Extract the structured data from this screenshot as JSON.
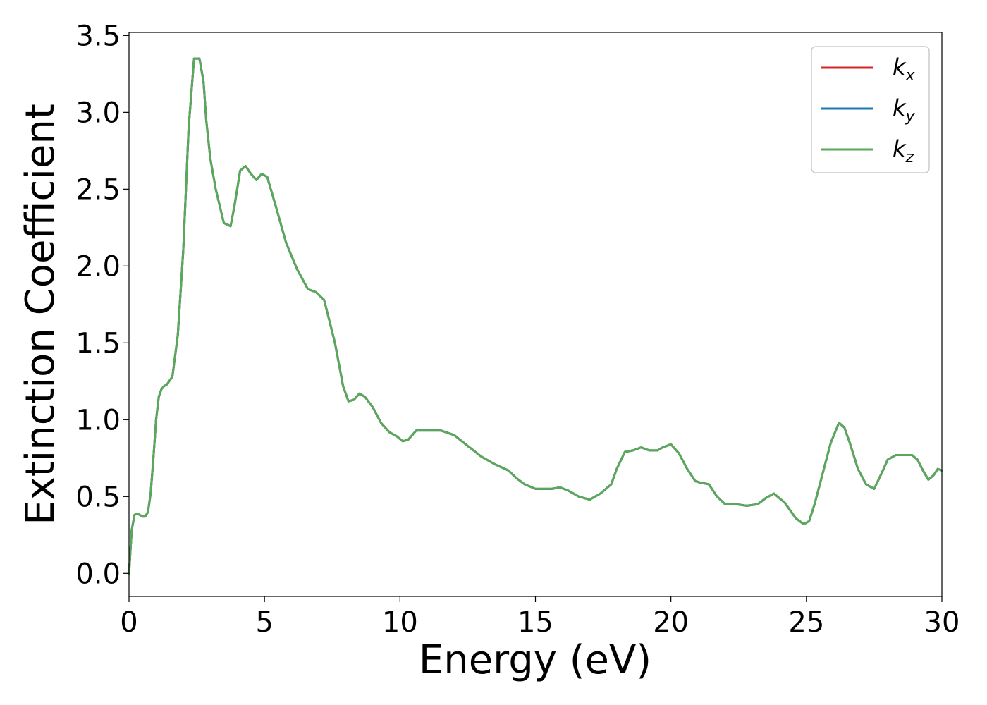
{
  "chart_data": {
    "type": "line",
    "title": "",
    "xlabel": "Energy (eV)",
    "ylabel": "Extinction Coefficient",
    "xlim": [
      0,
      30
    ],
    "ylim": [
      -0.15,
      3.52
    ],
    "xticks": [
      0,
      5,
      10,
      15,
      20,
      25,
      30
    ],
    "yticks": [
      0.0,
      0.5,
      1.0,
      1.5,
      2.0,
      2.5,
      3.0,
      3.5
    ],
    "xtick_labels": [
      "0",
      "5",
      "10",
      "15",
      "20",
      "25",
      "30"
    ],
    "ytick_labels": [
      "0.0",
      "0.5",
      "1.0",
      "1.5",
      "2.0",
      "2.5",
      "3.0",
      "3.5"
    ],
    "grid": false,
    "legend_position": "top-right",
    "x": [
      0,
      0.1,
      0.2,
      0.3,
      0.4,
      0.5,
      0.6,
      0.7,
      0.8,
      0.9,
      1.0,
      1.1,
      1.2,
      1.3,
      1.4,
      1.6,
      1.8,
      2.0,
      2.2,
      2.4,
      2.6,
      2.75,
      2.85,
      3.0,
      3.2,
      3.5,
      3.75,
      3.9,
      4.1,
      4.3,
      4.5,
      4.7,
      4.9,
      5.1,
      5.4,
      5.8,
      6.2,
      6.6,
      6.9,
      7.2,
      7.6,
      7.9,
      8.1,
      8.3,
      8.5,
      8.7,
      9.0,
      9.3,
      9.6,
      9.9,
      10.1,
      10.3,
      10.6,
      11.0,
      11.5,
      12.0,
      12.5,
      13.0,
      13.5,
      14.0,
      14.3,
      14.6,
      15.0,
      15.3,
      15.6,
      15.9,
      16.2,
      16.6,
      17.0,
      17.4,
      17.8,
      18.0,
      18.3,
      18.6,
      18.9,
      19.2,
      19.5,
      19.7,
      20.0,
      20.3,
      20.6,
      20.9,
      21.1,
      21.4,
      21.7,
      22.0,
      22.4,
      22.8,
      23.2,
      23.5,
      23.8,
      24.2,
      24.6,
      24.9,
      25.1,
      25.3,
      25.6,
      25.9,
      26.2,
      26.4,
      26.6,
      26.9,
      27.2,
      27.5,
      27.8,
      28.0,
      28.3,
      28.6,
      28.9,
      29.1,
      29.3,
      29.5,
      29.7,
      29.85,
      30.0
    ],
    "series": [
      {
        "name": "kx",
        "color": "#d62728",
        "values": [
          0.0,
          0.28,
          0.38,
          0.39,
          0.38,
          0.37,
          0.37,
          0.4,
          0.52,
          0.75,
          1.0,
          1.15,
          1.2,
          1.22,
          1.23,
          1.28,
          1.55,
          2.1,
          2.9,
          3.35,
          3.35,
          3.2,
          2.95,
          2.7,
          2.5,
          2.28,
          2.26,
          2.4,
          2.62,
          2.65,
          2.6,
          2.56,
          2.6,
          2.58,
          2.4,
          2.15,
          1.98,
          1.85,
          1.83,
          1.78,
          1.5,
          1.22,
          1.12,
          1.13,
          1.17,
          1.15,
          1.08,
          0.98,
          0.92,
          0.89,
          0.86,
          0.87,
          0.93,
          0.93,
          0.93,
          0.9,
          0.83,
          0.76,
          0.71,
          0.67,
          0.62,
          0.58,
          0.55,
          0.55,
          0.55,
          0.56,
          0.54,
          0.5,
          0.48,
          0.52,
          0.58,
          0.68,
          0.79,
          0.8,
          0.82,
          0.8,
          0.8,
          0.82,
          0.84,
          0.78,
          0.68,
          0.6,
          0.59,
          0.58,
          0.5,
          0.45,
          0.45,
          0.44,
          0.45,
          0.49,
          0.52,
          0.46,
          0.36,
          0.32,
          0.34,
          0.45,
          0.65,
          0.85,
          0.98,
          0.95,
          0.85,
          0.68,
          0.58,
          0.55,
          0.66,
          0.74,
          0.77,
          0.77,
          0.77,
          0.74,
          0.67,
          0.61,
          0.64,
          0.68,
          0.67
        ]
      },
      {
        "name": "ky",
        "color": "#1f77b4",
        "values": [
          0.0,
          0.28,
          0.38,
          0.39,
          0.38,
          0.37,
          0.37,
          0.4,
          0.52,
          0.75,
          1.0,
          1.15,
          1.2,
          1.22,
          1.23,
          1.28,
          1.55,
          2.1,
          2.9,
          3.35,
          3.35,
          3.2,
          2.95,
          2.7,
          2.5,
          2.28,
          2.26,
          2.4,
          2.62,
          2.65,
          2.6,
          2.56,
          2.6,
          2.58,
          2.4,
          2.15,
          1.98,
          1.85,
          1.83,
          1.78,
          1.5,
          1.22,
          1.12,
          1.13,
          1.17,
          1.15,
          1.08,
          0.98,
          0.92,
          0.89,
          0.86,
          0.87,
          0.93,
          0.93,
          0.93,
          0.9,
          0.83,
          0.76,
          0.71,
          0.67,
          0.62,
          0.58,
          0.55,
          0.55,
          0.55,
          0.56,
          0.54,
          0.5,
          0.48,
          0.52,
          0.58,
          0.68,
          0.79,
          0.8,
          0.82,
          0.8,
          0.8,
          0.82,
          0.84,
          0.78,
          0.68,
          0.6,
          0.59,
          0.58,
          0.5,
          0.45,
          0.45,
          0.44,
          0.45,
          0.49,
          0.52,
          0.46,
          0.36,
          0.32,
          0.34,
          0.45,
          0.65,
          0.85,
          0.98,
          0.95,
          0.85,
          0.68,
          0.58,
          0.55,
          0.66,
          0.74,
          0.77,
          0.77,
          0.77,
          0.74,
          0.67,
          0.61,
          0.64,
          0.68,
          0.67
        ]
      },
      {
        "name": "kz",
        "color": "#5aa95a",
        "values": [
          0.0,
          0.28,
          0.38,
          0.39,
          0.38,
          0.37,
          0.37,
          0.4,
          0.52,
          0.75,
          1.0,
          1.15,
          1.2,
          1.22,
          1.23,
          1.28,
          1.55,
          2.1,
          2.9,
          3.35,
          3.35,
          3.2,
          2.95,
          2.7,
          2.5,
          2.28,
          2.26,
          2.4,
          2.62,
          2.65,
          2.6,
          2.56,
          2.6,
          2.58,
          2.4,
          2.15,
          1.98,
          1.85,
          1.83,
          1.78,
          1.5,
          1.22,
          1.12,
          1.13,
          1.17,
          1.15,
          1.08,
          0.98,
          0.92,
          0.89,
          0.86,
          0.87,
          0.93,
          0.93,
          0.93,
          0.9,
          0.83,
          0.76,
          0.71,
          0.67,
          0.62,
          0.58,
          0.55,
          0.55,
          0.55,
          0.56,
          0.54,
          0.5,
          0.48,
          0.52,
          0.58,
          0.68,
          0.79,
          0.8,
          0.82,
          0.8,
          0.8,
          0.82,
          0.84,
          0.78,
          0.68,
          0.6,
          0.59,
          0.58,
          0.5,
          0.45,
          0.45,
          0.44,
          0.45,
          0.49,
          0.52,
          0.46,
          0.36,
          0.32,
          0.34,
          0.45,
          0.65,
          0.85,
          0.98,
          0.95,
          0.85,
          0.68,
          0.58,
          0.55,
          0.66,
          0.74,
          0.77,
          0.77,
          0.77,
          0.74,
          0.67,
          0.61,
          0.64,
          0.68,
          0.67
        ]
      }
    ],
    "legend": [
      {
        "base": "k",
        "sub": "x",
        "color": "#d62728"
      },
      {
        "base": "k",
        "sub": "y",
        "color": "#1f77b4"
      },
      {
        "base": "k",
        "sub": "z",
        "color": "#5aa95a"
      }
    ]
  }
}
